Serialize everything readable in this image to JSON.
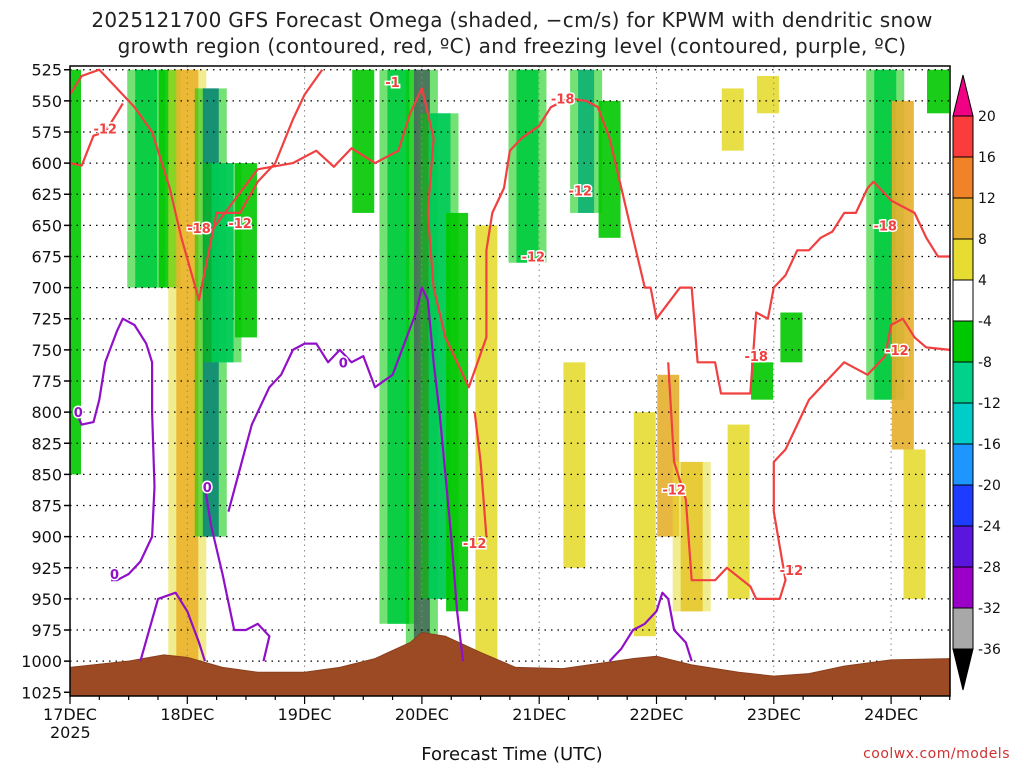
{
  "title_line1": "2025121700 GFS Forecast Omega (shaded, −cm/s) for KPWM with dendritic snow",
  "title_line2": "growth region (contoured, red, ºC) and freezing level (contoured, purple, ºC)",
  "credit": "coolwx.com/models",
  "chart_data": {
    "type": "heatmap",
    "title": "2025121700 GFS Forecast Omega (shaded, −cm/s) for KPWM with dendritic snow growth region (contoured, red, ºC) and freezing level (contoured, purple, ºC)",
    "xlabel": "Forecast Time (UTC)",
    "ylabel": "Pressure (hPa)",
    "x_tick_labels": [
      "17DEC",
      "18DEC",
      "19DEC",
      "20DEC",
      "21DEC",
      "22DEC",
      "23DEC",
      "24DEC"
    ],
    "x_tick_sublabel": "2025",
    "xlim_days": [
      0,
      7.5
    ],
    "y_tick_labels": [
      "525",
      "550",
      "575",
      "600",
      "625",
      "650",
      "675",
      "700",
      "725",
      "750",
      "775",
      "800",
      "825",
      "850",
      "875",
      "900",
      "925",
      "950",
      "975",
      "1000",
      "1025"
    ],
    "ylim_hpa": [
      1025,
      520
    ],
    "colorbar": {
      "levels": [
        -36,
        -32,
        -28,
        -24,
        -20,
        -16,
        -12,
        -8,
        -4,
        4,
        8,
        12,
        16,
        20
      ],
      "colors": [
        "#000000",
        "#a8a8a8",
        "#9a00c8",
        "#5a16dc",
        "#1e3cff",
        "#1e96ff",
        "#00cdc8",
        "#00d28c",
        "#00c800",
        "#ffffff",
        "#e6dc32",
        "#e6af2d",
        "#f08228",
        "#fa3c3c",
        "#f00082"
      ]
    },
    "omega_features": [
      {
        "day": 0.0,
        "p_top": 525,
        "p_bot": 850,
        "value": -6
      },
      {
        "day": 0.65,
        "p_top": 525,
        "p_bot": 700,
        "value": -10
      },
      {
        "day": 0.85,
        "p_top": 525,
        "p_bot": 700,
        "value": -8
      },
      {
        "day": 1.0,
        "p_top": 525,
        "p_bot": 1000,
        "value": 14
      },
      {
        "day": 1.2,
        "p_top": 540,
        "p_bot": 900,
        "value": -22
      },
      {
        "day": 1.3,
        "p_top": 600,
        "p_bot": 760,
        "value": -14
      },
      {
        "day": 1.5,
        "p_top": 600,
        "p_bot": 740,
        "value": -8
      },
      {
        "day": 2.5,
        "p_top": 525,
        "p_bot": 640,
        "value": -8
      },
      {
        "day": 2.8,
        "p_top": 525,
        "p_bot": 970,
        "value": -12
      },
      {
        "day": 3.0,
        "p_top": 525,
        "p_bot": 1000,
        "value": -30
      },
      {
        "day": 3.15,
        "p_top": 560,
        "p_bot": 950,
        "value": -14
      },
      {
        "day": 3.3,
        "p_top": 640,
        "p_bot": 960,
        "value": -8
      },
      {
        "day": 3.55,
        "p_top": 650,
        "p_bot": 1000,
        "value": 6
      },
      {
        "day": 3.9,
        "p_top": 525,
        "p_bot": 680,
        "value": -10
      },
      {
        "day": 4.4,
        "p_top": 525,
        "p_bot": 640,
        "value": -18
      },
      {
        "day": 4.6,
        "p_top": 550,
        "p_bot": 660,
        "value": -8
      },
      {
        "day": 4.9,
        "p_top": 800,
        "p_bot": 980,
        "value": 6
      },
      {
        "day": 5.1,
        "p_top": 770,
        "p_bot": 900,
        "value": 8
      },
      {
        "day": 5.3,
        "p_top": 840,
        "p_bot": 960,
        "value": 10
      },
      {
        "day": 4.3,
        "p_top": 760,
        "p_bot": 925,
        "value": 6
      },
      {
        "day": 5.65,
        "p_top": 540,
        "p_bot": 590,
        "value": 6
      },
      {
        "day": 5.95,
        "p_top": 530,
        "p_bot": 560,
        "value": 6
      },
      {
        "day": 5.7,
        "p_top": 810,
        "p_bot": 950,
        "value": 6
      },
      {
        "day": 5.9,
        "p_top": 760,
        "p_bot": 790,
        "value": -8
      },
      {
        "day": 6.15,
        "p_top": 720,
        "p_bot": 760,
        "value": -8
      },
      {
        "day": 6.95,
        "p_top": 525,
        "p_bot": 790,
        "value": -12
      },
      {
        "day": 7.1,
        "p_top": 550,
        "p_bot": 830,
        "value": 8
      },
      {
        "day": 7.2,
        "p_top": 830,
        "p_bot": 950,
        "value": 6
      },
      {
        "day": 7.4,
        "p_top": 525,
        "p_bot": 560,
        "value": -8
      }
    ],
    "contours_dgz_red": [
      {
        "label": "-12",
        "points": [
          [
            0.0,
            545
          ],
          [
            0.1,
            530
          ],
          [
            0.25,
            525
          ],
          [
            0.4,
            540
          ],
          [
            0.55,
            555
          ],
          [
            0.7,
            575
          ],
          [
            0.85,
            620
          ],
          [
            0.95,
            660
          ],
          [
            1.1,
            710
          ],
          [
            1.25,
            640
          ],
          [
            1.45,
            640
          ],
          [
            1.6,
            615
          ],
          [
            1.75,
            600
          ],
          [
            1.9,
            565
          ],
          [
            2.0,
            545
          ],
          [
            2.15,
            525
          ]
        ]
      },
      {
        "label": "-12",
        "points": [
          [
            0.0,
            600
          ],
          [
            0.1,
            602
          ],
          [
            0.2,
            578
          ],
          [
            0.3,
            575
          ],
          [
            0.4,
            560
          ],
          [
            0.45,
            552
          ]
        ]
      },
      {
        "label": "-18",
        "points": [
          [
            1.0,
            650
          ],
          [
            1.2,
            655
          ],
          [
            1.4,
            630
          ],
          [
            1.6,
            605
          ],
          [
            1.9,
            600
          ],
          [
            2.1,
            590
          ],
          [
            2.25,
            603
          ],
          [
            2.4,
            588
          ],
          [
            2.6,
            600
          ],
          [
            2.8,
            590
          ],
          [
            2.9,
            560
          ],
          [
            3.0,
            540
          ],
          [
            3.1,
            580
          ],
          [
            3.05,
            640
          ],
          [
            3.1,
            700
          ],
          [
            3.2,
            740
          ],
          [
            3.4,
            780
          ],
          [
            3.55,
            740
          ],
          [
            3.55,
            670
          ],
          [
            3.6,
            640
          ],
          [
            3.7,
            620
          ],
          [
            3.75,
            590
          ],
          [
            3.85,
            580
          ],
          [
            4.0,
            570
          ],
          [
            4.1,
            555
          ],
          [
            4.25,
            548
          ],
          [
            4.4,
            550
          ],
          [
            4.5,
            555
          ],
          [
            4.6,
            580
          ],
          [
            4.7,
            620
          ],
          [
            4.8,
            660
          ],
          [
            4.9,
            700
          ],
          [
            4.95,
            700
          ],
          [
            5.0,
            725
          ],
          [
            5.2,
            700
          ],
          [
            5.3,
            700
          ],
          [
            5.35,
            760
          ],
          [
            5.5,
            760
          ],
          [
            5.55,
            785
          ],
          [
            5.8,
            785
          ],
          [
            5.85,
            720
          ],
          [
            5.95,
            725
          ],
          [
            6.0,
            700
          ],
          [
            6.1,
            690
          ],
          [
            6.2,
            670
          ],
          [
            6.3,
            670
          ],
          [
            6.4,
            660
          ],
          [
            6.5,
            655
          ],
          [
            6.6,
            640
          ],
          [
            6.7,
            640
          ],
          [
            6.8,
            620
          ],
          [
            6.85,
            615
          ],
          [
            7.0,
            630
          ],
          [
            7.2,
            640
          ],
          [
            7.3,
            660
          ],
          [
            7.4,
            675
          ],
          [
            7.5,
            675
          ]
        ]
      },
      {
        "label": "-12",
        "points": [
          [
            3.45,
            800
          ],
          [
            3.5,
            840
          ],
          [
            3.55,
            900
          ]
        ]
      },
      {
        "label": "-12",
        "points": [
          [
            5.1,
            760
          ],
          [
            5.15,
            840
          ],
          [
            5.25,
            870
          ],
          [
            5.3,
            935
          ],
          [
            5.5,
            935
          ],
          [
            5.6,
            925
          ],
          [
            5.8,
            940
          ],
          [
            5.85,
            950
          ],
          [
            6.05,
            950
          ],
          [
            6.1,
            935
          ],
          [
            6.0,
            880
          ],
          [
            6.0,
            840
          ],
          [
            6.1,
            830
          ],
          [
            6.2,
            810
          ],
          [
            6.3,
            790
          ],
          [
            6.5,
            770
          ],
          [
            6.6,
            760
          ],
          [
            6.8,
            770
          ],
          [
            6.95,
            755
          ],
          [
            7.0,
            730
          ],
          [
            7.1,
            725
          ],
          [
            7.2,
            740
          ],
          [
            7.3,
            748
          ],
          [
            7.5,
            750
          ]
        ]
      }
    ],
    "contours_freezing_purple": [
      {
        "label": "0",
        "points": [
          [
            0.05,
            800
          ],
          [
            0.1,
            810
          ],
          [
            0.2,
            808
          ],
          [
            0.25,
            790
          ],
          [
            0.3,
            760
          ],
          [
            0.4,
            735
          ],
          [
            0.45,
            725
          ],
          [
            0.55,
            730
          ],
          [
            0.65,
            745
          ],
          [
            0.7,
            760
          ],
          [
            0.7,
            800
          ],
          [
            0.72,
            860
          ],
          [
            0.7,
            900
          ],
          [
            0.6,
            920
          ],
          [
            0.5,
            930
          ],
          [
            0.4,
            935
          ],
          [
            0.35,
            935
          ]
        ]
      },
      {
        "label": "0",
        "points": [
          [
            0.6,
            1000
          ],
          [
            0.75,
            950
          ],
          [
            0.9,
            945
          ],
          [
            1.0,
            960
          ],
          [
            1.1,
            985
          ],
          [
            1.15,
            1000
          ]
        ]
      },
      {
        "label": "0",
        "points": [
          [
            1.15,
            860
          ],
          [
            1.2,
            890
          ],
          [
            1.3,
            930
          ],
          [
            1.4,
            975
          ],
          [
            1.5,
            975
          ],
          [
            1.6,
            970
          ],
          [
            1.7,
            980
          ],
          [
            1.65,
            1000
          ]
        ]
      },
      {
        "label": "0",
        "points": [
          [
            1.35,
            880
          ],
          [
            1.45,
            845
          ],
          [
            1.55,
            810
          ],
          [
            1.7,
            780
          ],
          [
            1.8,
            770
          ],
          [
            1.9,
            750
          ],
          [
            2.0,
            745
          ],
          [
            2.1,
            745
          ],
          [
            2.2,
            760
          ],
          [
            2.3,
            750
          ],
          [
            2.4,
            760
          ],
          [
            2.5,
            755
          ],
          [
            2.6,
            780
          ],
          [
            2.75,
            770
          ],
          [
            2.85,
            745
          ],
          [
            2.95,
            720
          ],
          [
            3.0,
            700
          ],
          [
            3.05,
            710
          ],
          [
            3.1,
            760
          ],
          [
            3.15,
            800
          ],
          [
            3.2,
            850
          ],
          [
            3.25,
            900
          ],
          [
            3.3,
            960
          ],
          [
            3.35,
            1000
          ]
        ]
      },
      {
        "label": "0",
        "points": [
          [
            4.6,
            1000
          ],
          [
            4.7,
            990
          ],
          [
            4.8,
            975
          ],
          [
            4.9,
            970
          ],
          [
            5.0,
            960
          ],
          [
            5.05,
            945
          ],
          [
            5.1,
            950
          ],
          [
            5.15,
            975
          ],
          [
            5.25,
            985
          ],
          [
            5.3,
            1000
          ]
        ]
      }
    ],
    "contour_labels": [
      {
        "text": "-12",
        "day": 0.3,
        "p": 572,
        "color": "red"
      },
      {
        "text": "-18",
        "day": 1.1,
        "p": 652,
        "color": "red"
      },
      {
        "text": "-12",
        "day": 1.45,
        "p": 648,
        "color": "red"
      },
      {
        "text": "-1",
        "day": 2.75,
        "p": 535,
        "color": "red"
      },
      {
        "text": "-18",
        "day": 4.2,
        "p": 548,
        "color": "red"
      },
      {
        "text": "-12",
        "day": 4.35,
        "p": 622,
        "color": "red"
      },
      {
        "text": "-12",
        "day": 3.95,
        "p": 675,
        "color": "red"
      },
      {
        "text": "-18",
        "day": 5.85,
        "p": 755,
        "color": "red"
      },
      {
        "text": "-12",
        "day": 3.45,
        "p": 905,
        "color": "red"
      },
      {
        "text": "-12",
        "day": 5.15,
        "p": 862,
        "color": "red"
      },
      {
        "text": "-12",
        "day": 6.15,
        "p": 927,
        "color": "red"
      },
      {
        "text": "-18",
        "day": 6.95,
        "p": 650,
        "color": "red"
      },
      {
        "text": "-12",
        "day": 7.05,
        "p": 750,
        "color": "red"
      },
      {
        "text": "0",
        "day": 0.07,
        "p": 800,
        "color": "purple"
      },
      {
        "text": "0",
        "day": 0.38,
        "p": 930,
        "color": "purple"
      },
      {
        "text": "0",
        "day": 1.17,
        "p": 860,
        "color": "purple"
      },
      {
        "text": "0",
        "day": 2.33,
        "p": 760,
        "color": "purple"
      }
    ],
    "terrain_surface_pressure": [
      [
        0.0,
        1005
      ],
      [
        0.5,
        1000
      ],
      [
        0.8,
        995
      ],
      [
        1.0,
        997
      ],
      [
        1.3,
        1005
      ],
      [
        1.6,
        1009
      ],
      [
        2.0,
        1009
      ],
      [
        2.3,
        1005
      ],
      [
        2.6,
        998
      ],
      [
        2.9,
        985
      ],
      [
        3.0,
        977
      ],
      [
        3.2,
        980
      ],
      [
        3.5,
        993
      ],
      [
        3.8,
        1005
      ],
      [
        4.2,
        1006
      ],
      [
        4.5,
        1002
      ],
      [
        4.8,
        998
      ],
      [
        5.0,
        996
      ],
      [
        5.3,
        1003
      ],
      [
        5.7,
        1009
      ],
      [
        6.0,
        1012
      ],
      [
        6.3,
        1010
      ],
      [
        6.6,
        1004
      ],
      [
        7.0,
        999
      ],
      [
        7.5,
        998
      ]
    ]
  }
}
